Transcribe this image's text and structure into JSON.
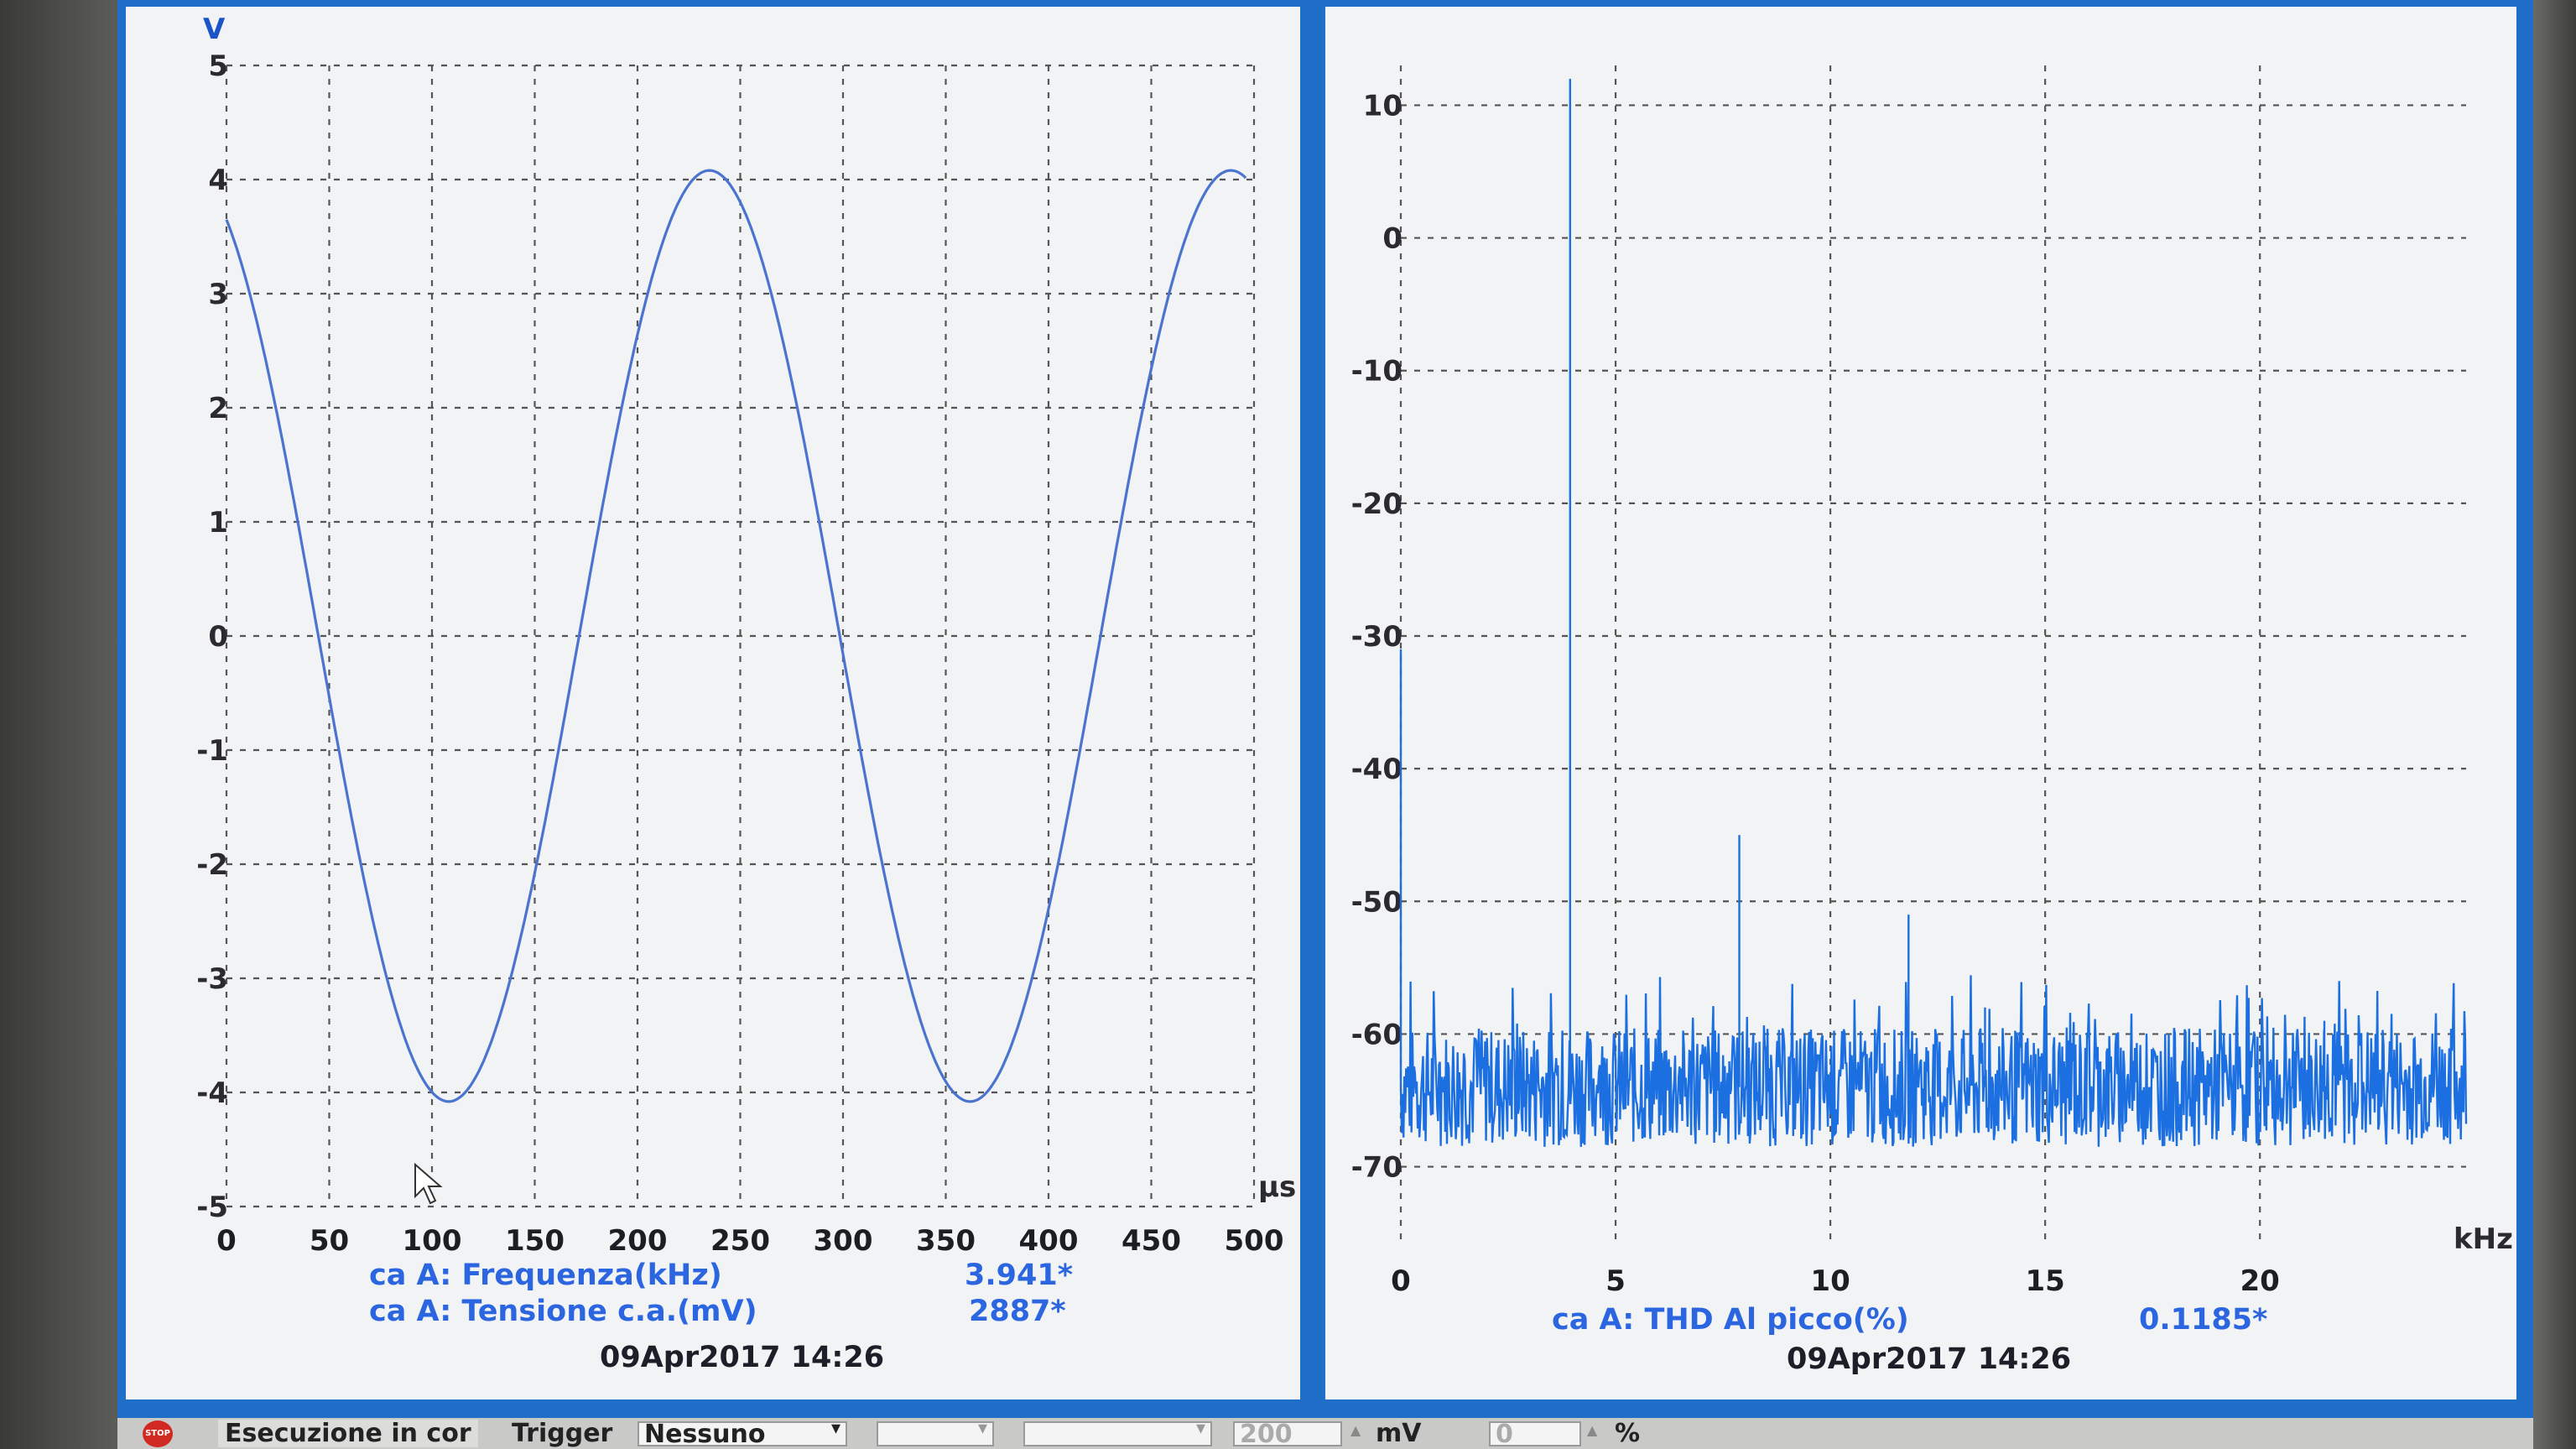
{
  "left_chart": {
    "y_unit": "V",
    "x_unit": "µs",
    "y_ticks": [
      "5",
      "4",
      "3",
      "2",
      "1",
      "0",
      "-1",
      "-2",
      "-3",
      "-4",
      "-5"
    ],
    "x_ticks": [
      "0",
      "50",
      "100",
      "150",
      "200",
      "250",
      "300",
      "350",
      "400",
      "450",
      "500"
    ],
    "measurements": [
      {
        "label": "ca A: Frequenza(kHz)",
        "value": "3.941*"
      },
      {
        "label": "ca A: Tensione c.a.(mV)",
        "value": "2887*"
      }
    ],
    "timestamp": "09Apr2017  14:26"
  },
  "right_chart": {
    "x_unit": "kHz",
    "y_ticks": [
      "10",
      "0",
      "-10",
      "-20",
      "-30",
      "-40",
      "-50",
      "-60",
      "-70"
    ],
    "x_ticks": [
      "0",
      "5",
      "10",
      "15",
      "20"
    ],
    "measurements": [
      {
        "label": "ca A: THD Al picco(%)",
        "value": "0.1185*"
      }
    ],
    "timestamp": "09Apr2017  14:26"
  },
  "chart_data": [
    {
      "type": "line",
      "title": "",
      "xlabel": "µs",
      "ylabel": "V",
      "xlim": [
        0,
        500
      ],
      "ylim": [
        -5,
        5
      ],
      "grid": true,
      "series": [
        {
          "amplitude": 4.08,
          "frequency_khz": 3.941,
          "x": [
            0,
            500
          ],
          "note_points": [
            [
              0,
              3.7
            ],
            [
              110,
              -4.1
            ],
            [
              235,
              4.1
            ],
            [
              365,
              -4.1
            ],
            [
              490,
              4.1
            ]
          ]
        }
      ]
    },
    {
      "type": "line",
      "title": "",
      "xlabel": "kHz",
      "ylabel": "",
      "xlim": [
        0,
        24.8
      ],
      "ylim": [
        -73,
        13
      ],
      "grid": true,
      "series": [
        {
          "noise_floor_db": -64,
          "peaks": [
            [
              0,
              -31
            ],
            [
              3.941,
              12
            ],
            [
              7.88,
              -45
            ],
            [
              11.82,
              -51
            ],
            [
              13.6,
              -58
            ],
            [
              21.5,
              -59
            ]
          ]
        }
      ]
    }
  ],
  "statusbar": {
    "stop_label": "STOP",
    "run_state": "Esecuzione in cor",
    "trigger_label": "Trigger",
    "trigger_value": "Nessuno",
    "level_value": "200",
    "level_unit": "mV",
    "percent_value": "0",
    "percent_unit": "%"
  }
}
